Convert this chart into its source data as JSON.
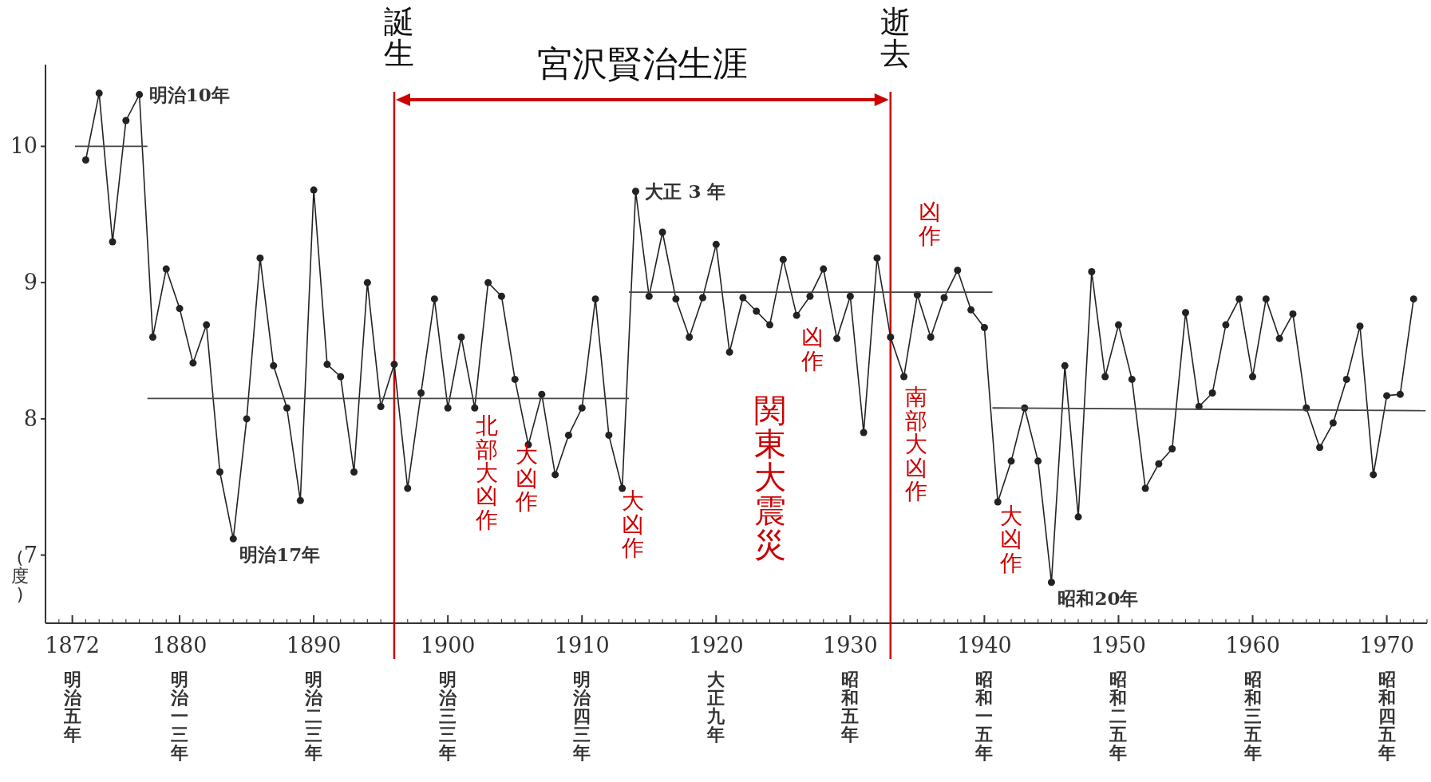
{
  "chart_data": {
    "type": "line",
    "ylabel": "(度)",
    "x": [
      1873,
      1874,
      1875,
      1876,
      1877,
      1878,
      1879,
      1880,
      1881,
      1882,
      1883,
      1884,
      1885,
      1886,
      1887,
      1888,
      1889,
      1890,
      1891,
      1892,
      1893,
      1894,
      1895,
      1896,
      1897,
      1898,
      1899,
      1900,
      1901,
      1902,
      1903,
      1904,
      1905,
      1906,
      1907,
      1908,
      1909,
      1910,
      1911,
      1912,
      1913,
      1914,
      1915,
      1916,
      1917,
      1918,
      1919,
      1920,
      1921,
      1922,
      1923,
      1924,
      1925,
      1926,
      1927,
      1928,
      1929,
      1930,
      1931,
      1932,
      1933,
      1934,
      1935,
      1936,
      1937,
      1938,
      1939,
      1940,
      1941,
      1942,
      1943,
      1944,
      1945,
      1946,
      1947,
      1948,
      1949,
      1950,
      1951,
      1952,
      1953,
      1954,
      1955,
      1956,
      1957,
      1958,
      1959,
      1960,
      1961,
      1962,
      1963,
      1964,
      1965,
      1966,
      1967,
      1968,
      1969,
      1970,
      1971,
      1972
    ],
    "series": [
      {
        "color": "#222222",
        "value_labels": [
          null,
          null,
          null,
          null,
          "明治10年",
          null,
          null,
          null,
          null,
          null,
          null,
          "明治17年",
          null,
          null,
          null,
          null,
          null,
          null,
          null,
          null,
          null,
          null,
          null,
          null,
          null,
          null,
          null,
          null,
          null,
          null,
          null,
          null,
          null,
          null,
          null,
          null,
          null,
          null,
          null,
          null,
          null,
          "大正 3 年",
          null,
          null,
          null,
          null,
          null,
          null,
          null,
          null,
          null,
          null,
          null,
          null,
          null,
          null,
          null,
          null,
          null,
          null,
          null,
          null,
          null,
          null,
          null,
          null,
          null,
          null,
          null,
          null,
          null,
          null,
          "昭和20年",
          null,
          null,
          null,
          null,
          null,
          null,
          null,
          null,
          null,
          null,
          null,
          null,
          null,
          null,
          null,
          null,
          null,
          null,
          null,
          null,
          null,
          null,
          null,
          null,
          null,
          null,
          null
        ],
        "values": [
          9.9,
          10.39,
          9.3,
          10.19,
          10.38,
          8.6,
          9.1,
          8.81,
          8.41,
          8.69,
          7.61,
          7.12,
          8.0,
          9.18,
          8.39,
          8.08,
          7.4,
          9.68,
          8.4,
          8.31,
          7.61,
          9.0,
          8.09,
          8.4,
          7.49,
          8.19,
          8.88,
          8.08,
          8.6,
          8.08,
          9.0,
          8.9,
          8.29,
          7.81,
          8.18,
          7.59,
          7.88,
          8.08,
          8.88,
          7.88,
          7.49,
          9.67,
          8.9,
          9.37,
          8.88,
          8.6,
          8.89,
          9.28,
          8.49,
          8.89,
          8.79,
          8.69,
          9.17,
          8.76,
          8.9,
          9.1,
          8.59,
          8.9,
          7.9,
          9.18,
          8.6,
          8.31,
          8.91,
          8.6,
          8.89,
          9.09,
          8.8,
          8.67,
          7.39,
          7.69,
          8.08,
          7.69,
          6.8,
          8.39,
          7.28,
          9.08,
          8.31,
          8.69,
          8.29,
          7.49,
          7.67,
          7.78,
          8.78,
          8.09,
          8.19,
          8.69,
          8.88,
          8.31,
          8.88,
          8.59,
          8.77,
          8.08,
          7.79,
          7.97,
          8.29,
          8.68,
          7.59,
          8.17,
          8.18,
          8.88
        ]
      },
      {
        "type": "line",
        "marker": "none",
        "color": "#444444",
        "x": [
          1872.2,
          1877.6
        ],
        "values": [
          10.0,
          10.0
        ]
      },
      {
        "type": "line",
        "marker": "none",
        "color": "#444444",
        "x": [
          1877.6,
          1913.5
        ],
        "values": [
          8.15,
          8.15
        ]
      },
      {
        "type": "line",
        "marker": "none",
        "color": "#444444",
        "x": [
          1913.5,
          1940.6
        ],
        "values": [
          8.93,
          8.93
        ]
      },
      {
        "type": "line",
        "marker": "none",
        "color": "#444444",
        "x": [
          1940.6,
          1972.9
        ],
        "values": [
          8.08,
          8.06
        ]
      }
    ],
    "xlim": [
      1870,
      1973
    ],
    "ylim": [
      6.5,
      10.6
    ],
    "xticks": [
      {
        "value": 1872,
        "label": "1872\n明治五年"
      },
      {
        "value": 1880,
        "label": "1880\n明治一三年"
      },
      {
        "value": 1890,
        "label": "1890\n明治二三年"
      },
      {
        "value": 1900,
        "label": "1900\n明治三三年"
      },
      {
        "value": 1910,
        "label": "1910\n明治四三年"
      },
      {
        "value": 1920,
        "label": "1920\n大正九年"
      },
      {
        "value": 1930,
        "label": "1930\n昭和五年"
      },
      {
        "value": 1940,
        "label": "1940\n昭和一五年"
      },
      {
        "value": 1950,
        "label": "1950\n昭和二五年"
      },
      {
        "value": 1960,
        "label": "1960\n昭和三五年"
      },
      {
        "value": 1970,
        "label": "1970\n昭和四五年"
      }
    ],
    "yticks": [
      7,
      8,
      9,
      10
    ],
    "ref_lines": [
      {
        "axis": "x",
        "value": 1896,
        "label": "誕生",
        "color": "#cc0000"
      },
      {
        "axis": "x",
        "value": 1933,
        "label": "逝去",
        "color": "#cc0000"
      }
    ],
    "annotations": [
      "宮沢賢治生涯",
      "北部大凶作",
      "大凶作",
      "大凶作",
      "凶作",
      "関東大震災",
      "南部大凶作",
      "凶作",
      "大凶作"
    ],
    "marker": "circle",
    "line_style": "solid"
  }
}
